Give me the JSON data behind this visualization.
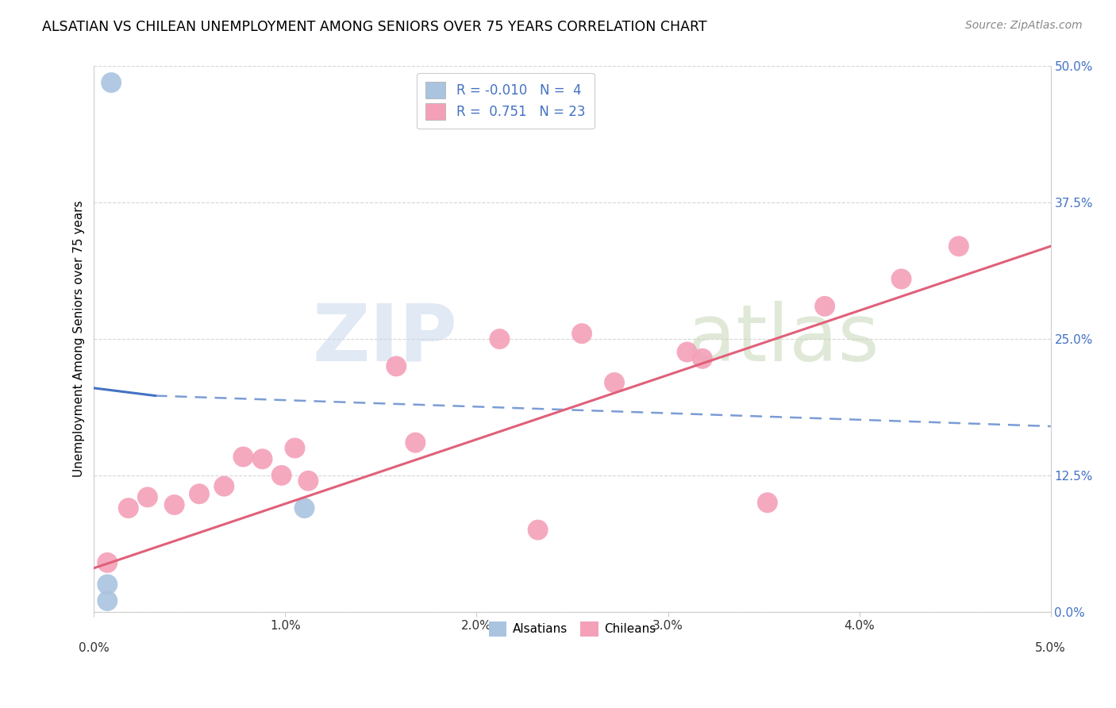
{
  "title": "ALSATIAN VS CHILEAN UNEMPLOYMENT AMONG SENIORS OVER 75 YEARS CORRELATION CHART",
  "source": "Source: ZipAtlas.com",
  "ylabel": "Unemployment Among Seniors over 75 years",
  "x_ticks_pct": [
    0.0,
    1.0,
    2.0,
    3.0,
    4.0,
    5.0
  ],
  "y_ticks_pct": [
    0.0,
    12.5,
    25.0,
    37.5,
    50.0
  ],
  "xlim": [
    0.0,
    5.0
  ],
  "ylim": [
    0.0,
    50.0
  ],
  "alsatian_r": "-0.010",
  "alsatian_n": "4",
  "chilean_r": "0.751",
  "chilean_n": "23",
  "alsatian_color": "#aac4e0",
  "chilean_color": "#f4a0b8",
  "alsatian_line_color": "#4472c4",
  "chilean_line_color": "#e0607a",
  "alsatian_line_solid": [
    [
      0.0,
      20.5
    ],
    [
      0.32,
      19.8
    ]
  ],
  "alsatian_line_dashed": [
    [
      0.32,
      19.8
    ],
    [
      5.0,
      17.0
    ]
  ],
  "chilean_line": [
    [
      0.0,
      4.0
    ],
    [
      5.0,
      33.5
    ]
  ],
  "alsatian_points": [
    [
      0.07,
      1.0
    ],
    [
      0.07,
      2.5
    ],
    [
      0.09,
      48.5
    ],
    [
      1.1,
      9.5
    ]
  ],
  "chilean_points": [
    [
      0.07,
      4.5
    ],
    [
      0.18,
      9.5
    ],
    [
      0.28,
      10.5
    ],
    [
      0.42,
      9.8
    ],
    [
      0.55,
      10.8
    ],
    [
      0.68,
      11.5
    ],
    [
      0.78,
      14.2
    ],
    [
      0.88,
      14.0
    ],
    [
      0.98,
      12.5
    ],
    [
      1.05,
      15.0
    ],
    [
      1.12,
      12.0
    ],
    [
      1.58,
      22.5
    ],
    [
      1.68,
      15.5
    ],
    [
      2.12,
      25.0
    ],
    [
      2.32,
      7.5
    ],
    [
      2.55,
      25.5
    ],
    [
      2.72,
      21.0
    ],
    [
      3.1,
      23.8
    ],
    [
      3.18,
      23.2
    ],
    [
      3.52,
      10.0
    ],
    [
      3.82,
      28.0
    ],
    [
      4.22,
      30.5
    ],
    [
      4.52,
      33.5
    ]
  ],
  "alsatian_point_size": 350,
  "chilean_point_size": 350,
  "background_color": "#ffffff",
  "grid_color": "#cccccc",
  "watermark_zip": "ZIP",
  "watermark_atlas": "atlas",
  "watermark_color_zip": "#c8d8ec",
  "watermark_color_atlas": "#c8d8b8",
  "watermark_fontsize": 72
}
